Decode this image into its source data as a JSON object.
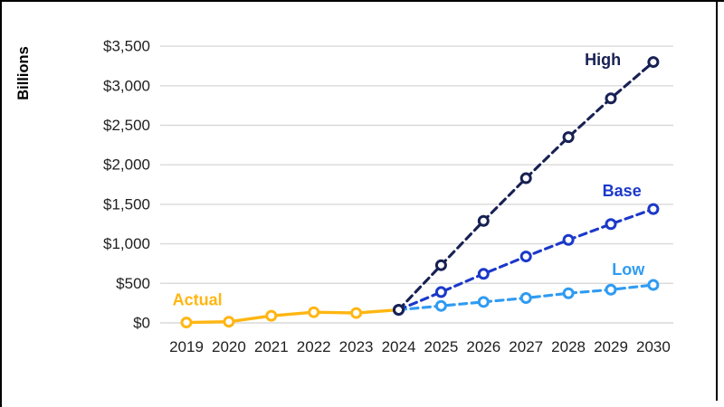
{
  "frame": {
    "border_color": "#000000"
  },
  "chart_data": {
    "type": "line",
    "title": "",
    "ylabel": "Billions",
    "xlabel": "",
    "grid": true,
    "legend": "inline-labels",
    "ylim": [
      0,
      3600
    ],
    "x_labels": [
      "2019",
      "2020",
      "2021",
      "2022",
      "2023",
      "2024",
      "2025",
      "2026",
      "2027",
      "2028",
      "2029",
      "2030"
    ],
    "y_ticks": [
      {
        "value": 0,
        "label": "$0"
      },
      {
        "value": 500,
        "label": "$500"
      },
      {
        "value": 1000,
        "label": "$1,000"
      },
      {
        "value": 1500,
        "label": "$1,500"
      },
      {
        "value": 2000,
        "label": "$2,000"
      },
      {
        "value": 2500,
        "label": "$2,500"
      },
      {
        "value": 3000,
        "label": "$3,000"
      },
      {
        "value": 3500,
        "label": "$3,500"
      }
    ],
    "series": [
      {
        "name": "Actual",
        "color": "#FFB612",
        "line_style": "solid",
        "start_year": 2019,
        "values": [
          5,
          15,
          90,
          135,
          125,
          165
        ]
      },
      {
        "name": "Low",
        "color": "#2F9BF2",
        "line_style": "dashed",
        "start_year": 2024,
        "values": [
          165,
          215,
          265,
          315,
          375,
          420,
          480
        ]
      },
      {
        "name": "Base",
        "color": "#1B38C9",
        "line_style": "dashed",
        "start_year": 2024,
        "values": [
          165,
          390,
          620,
          840,
          1050,
          1250,
          1440
        ]
      },
      {
        "name": "High",
        "color": "#172153",
        "line_style": "dashed",
        "start_year": 2024,
        "values": [
          165,
          730,
          1290,
          1830,
          2350,
          2840,
          3300
        ]
      }
    ],
    "annotations": [
      {
        "text": "Actual",
        "color": "#FFB612",
        "year": 2019.26,
        "value": 290
      },
      {
        "text": "High",
        "color": "#172153",
        "year": 2028.81,
        "value": 3330
      },
      {
        "text": "Base",
        "color": "#1B38C9",
        "year": 2029.26,
        "value": 1670
      },
      {
        "text": "Low",
        "color": "#2F9BF2",
        "year": 2029.41,
        "value": 675
      }
    ]
  }
}
